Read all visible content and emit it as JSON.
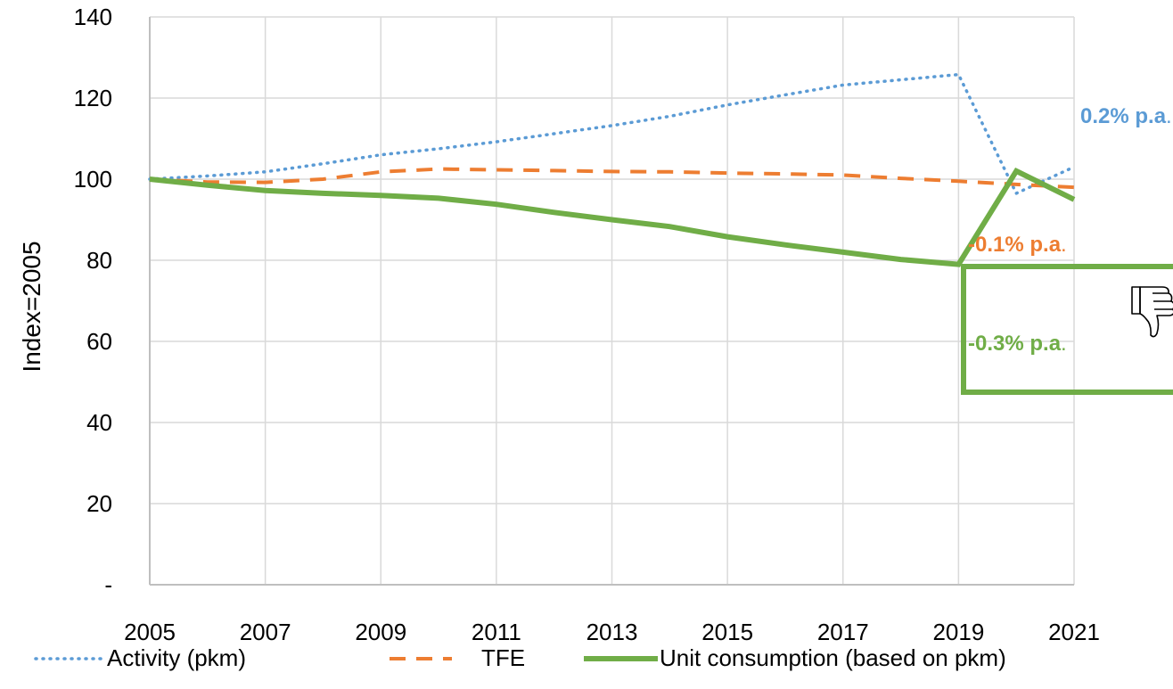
{
  "chart_data": {
    "type": "line",
    "ylabel": "Index=2005",
    "xlabel": "",
    "x": [
      2005,
      2006,
      2007,
      2008,
      2009,
      2010,
      2011,
      2012,
      2013,
      2014,
      2015,
      2016,
      2017,
      2018,
      2019,
      2020,
      2021
    ],
    "x_ticks": [
      "2005",
      "2007",
      "2009",
      "2011",
      "2013",
      "2015",
      "2017",
      "2019",
      "2021"
    ],
    "y_ticks": [
      "-",
      "20",
      "40",
      "60",
      "80",
      "100",
      "120",
      "140"
    ],
    "ylim": [
      0,
      140
    ],
    "grid": true,
    "legend_position": "bottom",
    "series": [
      {
        "name": "Activity (pkm)",
        "style": "dotted",
        "color": "#5B9BD5",
        "values": [
          100,
          100.8,
          101.8,
          103.8,
          106,
          107.5,
          109.2,
          111.2,
          113.2,
          115.5,
          118.3,
          120.8,
          123.2,
          124.5,
          125.8,
          96.5,
          103
        ]
      },
      {
        "name": "TFE",
        "style": "dashed",
        "color": "#ED7D31",
        "values": [
          100,
          99.3,
          99.2,
          100,
          101.8,
          102.5,
          102.3,
          102.1,
          101.9,
          101.8,
          101.5,
          101.3,
          101,
          100.2,
          99.5,
          98.7,
          98
        ]
      },
      {
        "name": "Unit consumption (based on pkm)",
        "style": "solid",
        "color": "#70AD47",
        "values": [
          100,
          98.5,
          97.2,
          96.5,
          96,
          95.3,
          93.8,
          91.8,
          90,
          88.3,
          85.8,
          83.8,
          82,
          80.2,
          79,
          102,
          95
        ]
      }
    ],
    "annotations": [
      {
        "text": "0.2% p.a",
        "suffix": ".",
        "color": "#5B9BD5"
      },
      {
        "text": "-0.1% p.a",
        "suffix": ".",
        "color": "#ED7D31"
      },
      {
        "text": "-0.3% p.a",
        "suffix": ".",
        "color": "#70AD47",
        "boxed": true,
        "icon": "thumbs-down-icon"
      }
    ]
  }
}
